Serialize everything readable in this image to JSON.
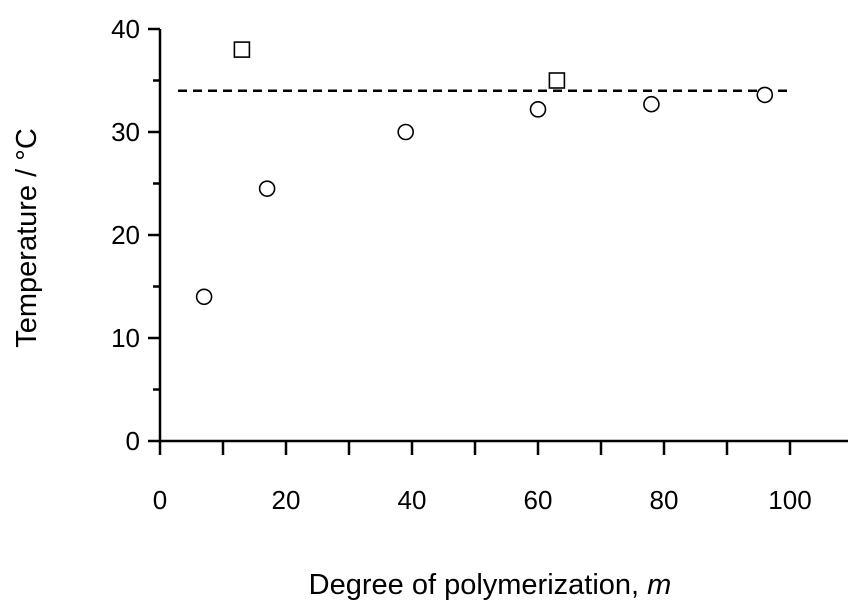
{
  "chart_data": {
    "type": "scatter",
    "xlabel_text": "Degree of polymerization, ",
    "xlabel_var": "m",
    "ylabel": "Temperature / °C",
    "xlim": [
      0,
      100
    ],
    "ylim": [
      0,
      40
    ],
    "x_ticks": [
      0,
      20,
      40,
      60,
      80,
      100
    ],
    "x_minor_ticks": [
      10,
      30,
      50,
      70,
      90
    ],
    "y_ticks": [
      0,
      10,
      20,
      30,
      40
    ],
    "y_minor_ticks": [
      5,
      15,
      25,
      35
    ],
    "reference_line": {
      "y": 34,
      "x_range": [
        0,
        100
      ],
      "style": "dashed"
    },
    "series": [
      {
        "marker": "circle",
        "points": [
          [
            7,
            14
          ],
          [
            17,
            24.5
          ],
          [
            39,
            30
          ],
          [
            60,
            32.2
          ],
          [
            78,
            32.7
          ],
          [
            96,
            33.6
          ]
        ]
      },
      {
        "marker": "square",
        "points": [
          [
            13,
            38
          ],
          [
            63,
            35
          ]
        ]
      }
    ],
    "grid": false,
    "legend": "none"
  }
}
